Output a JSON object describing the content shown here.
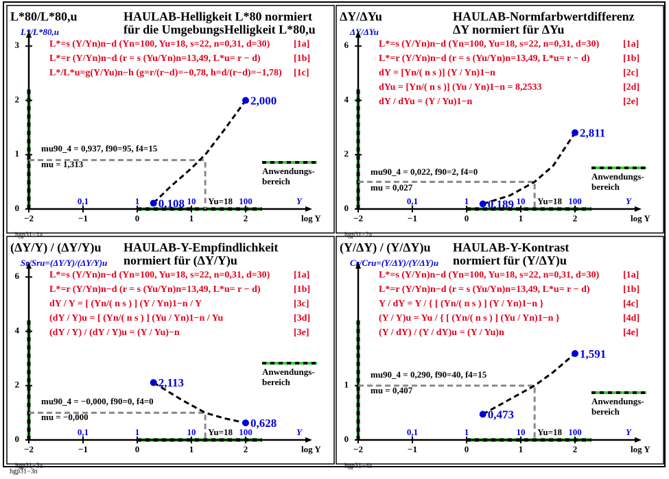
{
  "chart_data": [
    {
      "type": "line",
      "corner_title": "L*80/L*80,u",
      "title": [
        "HAULAB-Helligkeit L*80 normiert",
        "für die UmgebungsHelligkeit L*80,u"
      ],
      "y_label": "L*/L*80,u",
      "formulas": [
        {
          "text": "L*=s (Y/Yn)n−d  (Yn=100, Yu=18, s=22, n=0,31, d=30)",
          "tag": "[1a]"
        },
        {
          "text": "L*=r (Y/Yn)n−d  (r = s (Yu/Yn)n=13,49, L*u= r − d)",
          "tag": "[1b]"
        },
        {
          "text": "L*/L*u=g(Y/Yu)n−h  (g=r/(r−d)=−0,78, h=d/(r−d)=−1,78)",
          "tag": "[1c]"
        }
      ],
      "annotations": [
        "mu90_4 = 0,937, f90=95, f4=15",
        "mu = 1,313"
      ],
      "yu_label": "Yu=18",
      "legend_label": [
        "Anwendungs-",
        "bereich"
      ],
      "figure_id": "hgp31−1a",
      "x_label": "log Y",
      "x2_label": "Y",
      "xlim": [
        -2,
        3
      ],
      "ylim": [
        0,
        3.18
      ],
      "xticks": [
        {
          "value": -2,
          "label": "−2"
        },
        {
          "value": -1,
          "label": "−1"
        },
        0,
        1,
        2
      ],
      "yticks": [
        0,
        1,
        2,
        3
      ],
      "x2ticks": [
        {
          "value": -1,
          "label": "0,1"
        },
        {
          "value": 0,
          "label": "1"
        },
        {
          "value": 1,
          "label": "10"
        },
        {
          "value": 2,
          "label": "100"
        }
      ],
      "x": [
        0.3,
        0.6,
        1.0,
        1.255,
        1.6,
        2.0
      ],
      "values": [
        0.108,
        0.4,
        0.75,
        1.0,
        1.45,
        2.0
      ],
      "points": {
        "x": [
          0.3,
          2.0
        ],
        "values": [
          0.108,
          2.0
        ],
        "value_labels": [
          "0,108",
          "2,000"
        ]
      },
      "reference": {
        "x": 1.255,
        "y": 0.9
      },
      "color": "#0000dd"
    },
    {
      "type": "line",
      "corner_title": "ΔY/ΔYu",
      "title": [
        "HAULAB-Normfarbwertdifferenz",
        "ΔY normiert für ΔYu"
      ],
      "y_label": "ΔY/ΔYu",
      "formulas": [
        {
          "text": "L*=s (Y/Yn)n−d  (Yn=100, Yu=18, s=22, n=0,31, d=30)",
          "tag": "[1a]"
        },
        {
          "text": "L*=r (Y/Yn)n−d  (r = s (Yu/Yn)n=13,49, L*u= r − d)",
          "tag": "[1b]"
        },
        {
          "text": "dY = [Yn/( n s )] (Y / Yn)1−n",
          "tag": "[2c]"
        },
        {
          "text": "dYu = [Yn/( n s )] (Yu / Yn)1−n = 8,2533",
          "tag": "[2d]"
        },
        {
          "text": "dY / dYu = (Y / Yu)1−n",
          "tag": "[2e]"
        }
      ],
      "annotations": [
        "mu90_4 = 0,022, f90=2, f4=0",
        "mu = 0,027"
      ],
      "yu_label": "Yu=18",
      "legend_label": [
        "Anwendungs-",
        "bereich"
      ],
      "figure_id": "hgp31−2a",
      "x_label": "log Y",
      "x2_label": "Y",
      "xlim": [
        -2,
        3
      ],
      "ylim": [
        0,
        6.36
      ],
      "xticks": [
        {
          "value": -2,
          "label": "−2"
        },
        {
          "value": -1,
          "label": "−1"
        },
        0,
        1,
        2
      ],
      "yticks": [
        0,
        2,
        4,
        6
      ],
      "x2ticks": [
        {
          "value": -1,
          "label": "0,1"
        },
        {
          "value": 0,
          "label": "1"
        },
        {
          "value": 1,
          "label": "10"
        },
        {
          "value": 2,
          "label": "100"
        }
      ],
      "x": [
        0.3,
        0.8,
        1.255,
        1.6,
        2.0
      ],
      "values": [
        0.189,
        0.5,
        1.0,
        1.6,
        2.811
      ],
      "points": {
        "x": [
          0.3,
          2.0
        ],
        "values": [
          0.189,
          2.811
        ],
        "value_labels": [
          "0,189",
          "2,811"
        ]
      },
      "reference": {
        "x": 1.255,
        "y": 1
      },
      "color": "#0000dd"
    },
    {
      "type": "line",
      "corner_title": "(ΔY/Y) / (ΔY/Y)u",
      "title": [
        "HAULAB-Y-Empfindlichkeit",
        "normiert für (ΔY/Y)u"
      ],
      "y_label": "Sr/Sru=(ΔY/Y)/(ΔY/Y)u",
      "formulas": [
        {
          "text": "L*=s (Y/Yn)n−d  (Yn=100, Yu=18, s=22, n=0,31, d=30)",
          "tag": "[1a]"
        },
        {
          "text": "L*=r (Y/Yn)n−d  (r = s (Yu/Yn)n=13,49, L*u= r − d)",
          "tag": "[1b]"
        },
        {
          "text": "dY / Y = [ (Yn/( n s ) ] (Y / Yn)1−n / Y",
          "tag": "[3c]"
        },
        {
          "text": "(dY / Y)u = [ (Yn/( n s ) ] (Yu / Yn)1−n / Yu",
          "tag": "[3d]"
        },
        {
          "text": "(dY / Y) / (dY / Y)u = (Y / Yu)−n",
          "tag": "[3e]"
        }
      ],
      "annotations": [
        "mu90_4 = −0,000, f90=0, f4=0",
        "mu = −0,000"
      ],
      "yu_label": "Yu=18",
      "legend_label": [
        "Anwendungs-",
        "bereich"
      ],
      "figure_id": "hgp31−3a",
      "x_label": "log Y",
      "x2_label": "Y",
      "xlim": [
        -2,
        3
      ],
      "ylim": [
        0,
        6.36
      ],
      "xticks": [
        {
          "value": -2,
          "label": "−2"
        },
        {
          "value": -1,
          "label": "−1"
        },
        0,
        1,
        2
      ],
      "yticks": [
        0,
        2,
        4,
        6
      ],
      "x2ticks": [
        {
          "value": -1,
          "label": "0,1"
        },
        {
          "value": 0,
          "label": "1"
        },
        {
          "value": 1,
          "label": "10"
        },
        {
          "value": 2,
          "label": "100"
        }
      ],
      "x": [
        0.3,
        0.8,
        1.255,
        1.6,
        2.0
      ],
      "values": [
        2.113,
        1.5,
        1.0,
        0.8,
        0.628
      ],
      "points": {
        "x": [
          0.3,
          2.0
        ],
        "values": [
          2.113,
          0.628
        ],
        "value_labels": [
          "2,113",
          "0,628"
        ]
      },
      "reference": {
        "x": 1.255,
        "y": 1
      },
      "color": "#0000dd"
    },
    {
      "type": "line",
      "corner_title": "(Y/ΔY) / (Y/ΔY)u",
      "title": [
        "HAULAB-Y-Kontrast",
        "normiert für (Y/ΔY)u"
      ],
      "y_label": "Cr/Cru=(Y/ΔY)/(Y/ΔY)u",
      "formulas": [
        {
          "text": "L*=s (Y/Yn)n−d  (Yn=100, Yu=18, s=22, n=0,31, d=30)",
          "tag": "[1a]"
        },
        {
          "text": "L*=r (Y/Yn)n−d  (r = s (Yu/Yn)n=13,49, L*u= r − d)",
          "tag": "[1b]"
        },
        {
          "text": "Y / dY = Y / { [ (Yn/( n s ) ] (Y / Yn)1−n }",
          "tag": "[4c]"
        },
        {
          "text": "(Y / Y)u = Yu / { [ (Yn/( n s ) ] (Yu / Yn)1−n }",
          "tag": "[4d]"
        },
        {
          "text": "(Y / dY) / (Y / dY)u = (Y / Yu)n",
          "tag": "[4e]"
        }
      ],
      "annotations": [
        "mu90_4 = 0,290, f90=40, f4=15",
        "mu = 0,407"
      ],
      "yu_label": "Yu=18",
      "legend_label": [
        "Anwendungs-",
        "bereich"
      ],
      "figure_id": "hgp31−4a",
      "x_label": "log Y",
      "x2_label": "Y",
      "xlim": [
        -2,
        3
      ],
      "ylim": [
        0,
        3.18
      ],
      "xticks": [
        {
          "value": -2,
          "label": "−2"
        },
        {
          "value": -1,
          "label": "−1"
        },
        0,
        1,
        2
      ],
      "yticks": [
        0,
        1
      ],
      "x2ticks": [
        {
          "value": -1,
          "label": "0,1"
        },
        {
          "value": 0,
          "label": "1"
        },
        {
          "value": 1,
          "label": "10"
        },
        {
          "value": 2,
          "label": "100"
        }
      ],
      "x": [
        0.3,
        0.8,
        1.255,
        1.6,
        2.0
      ],
      "values": [
        0.473,
        0.75,
        1.0,
        1.25,
        1.591
      ],
      "points": {
        "x": [
          0.3,
          2.0
        ],
        "values": [
          0.473,
          1.591
        ],
        "value_labels": [
          "0,473",
          "1,591"
        ]
      },
      "reference": {
        "x": 1.255,
        "y": 1
      },
      "color": "#0000dd"
    }
  ],
  "footer": "hgp31−3n"
}
